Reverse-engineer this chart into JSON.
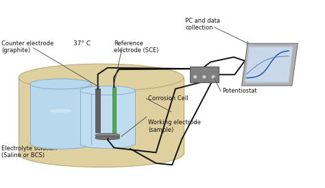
{
  "bg_color": "#ffffff",
  "labels": {
    "counter_electrode": "Counter electrode\n(graphite)",
    "temperature": "37° C",
    "reference_electrode": "Reference\nelectrode (SCE)",
    "electrolyte": "Electrolyte solution\n(Saline or BCS)",
    "working_electrode": "Working electrode\n(sample)",
    "corrosion_cell": "Corrosion Cell",
    "potentiostat": "Potentiostat",
    "pc": "PC and data\ncollection"
  },
  "colors": {
    "outer_vessel_fill": "#dfd0a0",
    "outer_vessel_edge": "#b8a870",
    "outer_vessel_shadow": "#c8b880",
    "left_beaker_fill": "#b8d8ee",
    "left_beaker_edge": "#88aac8",
    "left_beaker_highlight": "#daeef8",
    "right_beaker_fill": "#c0ddf0",
    "right_beaker_edge": "#88aac8",
    "graphite_electrode": "#606060",
    "green_electrode": "#50a850",
    "sample_disk_top": "#909090",
    "sample_disk_side": "#707070",
    "potentiostat_box": "#808080",
    "potentiostat_connector": "#cccccc",
    "monitor_outer": "#b0b0b0",
    "monitor_inner": "#c8d8e8",
    "monitor_curve1": "#2255aa",
    "monitor_curve2": "#3366bb",
    "wire_color": "#111111",
    "ann_line": "#555555",
    "text_color": "#111111"
  },
  "figsize": [
    4.74,
    2.74
  ],
  "dpi": 100
}
